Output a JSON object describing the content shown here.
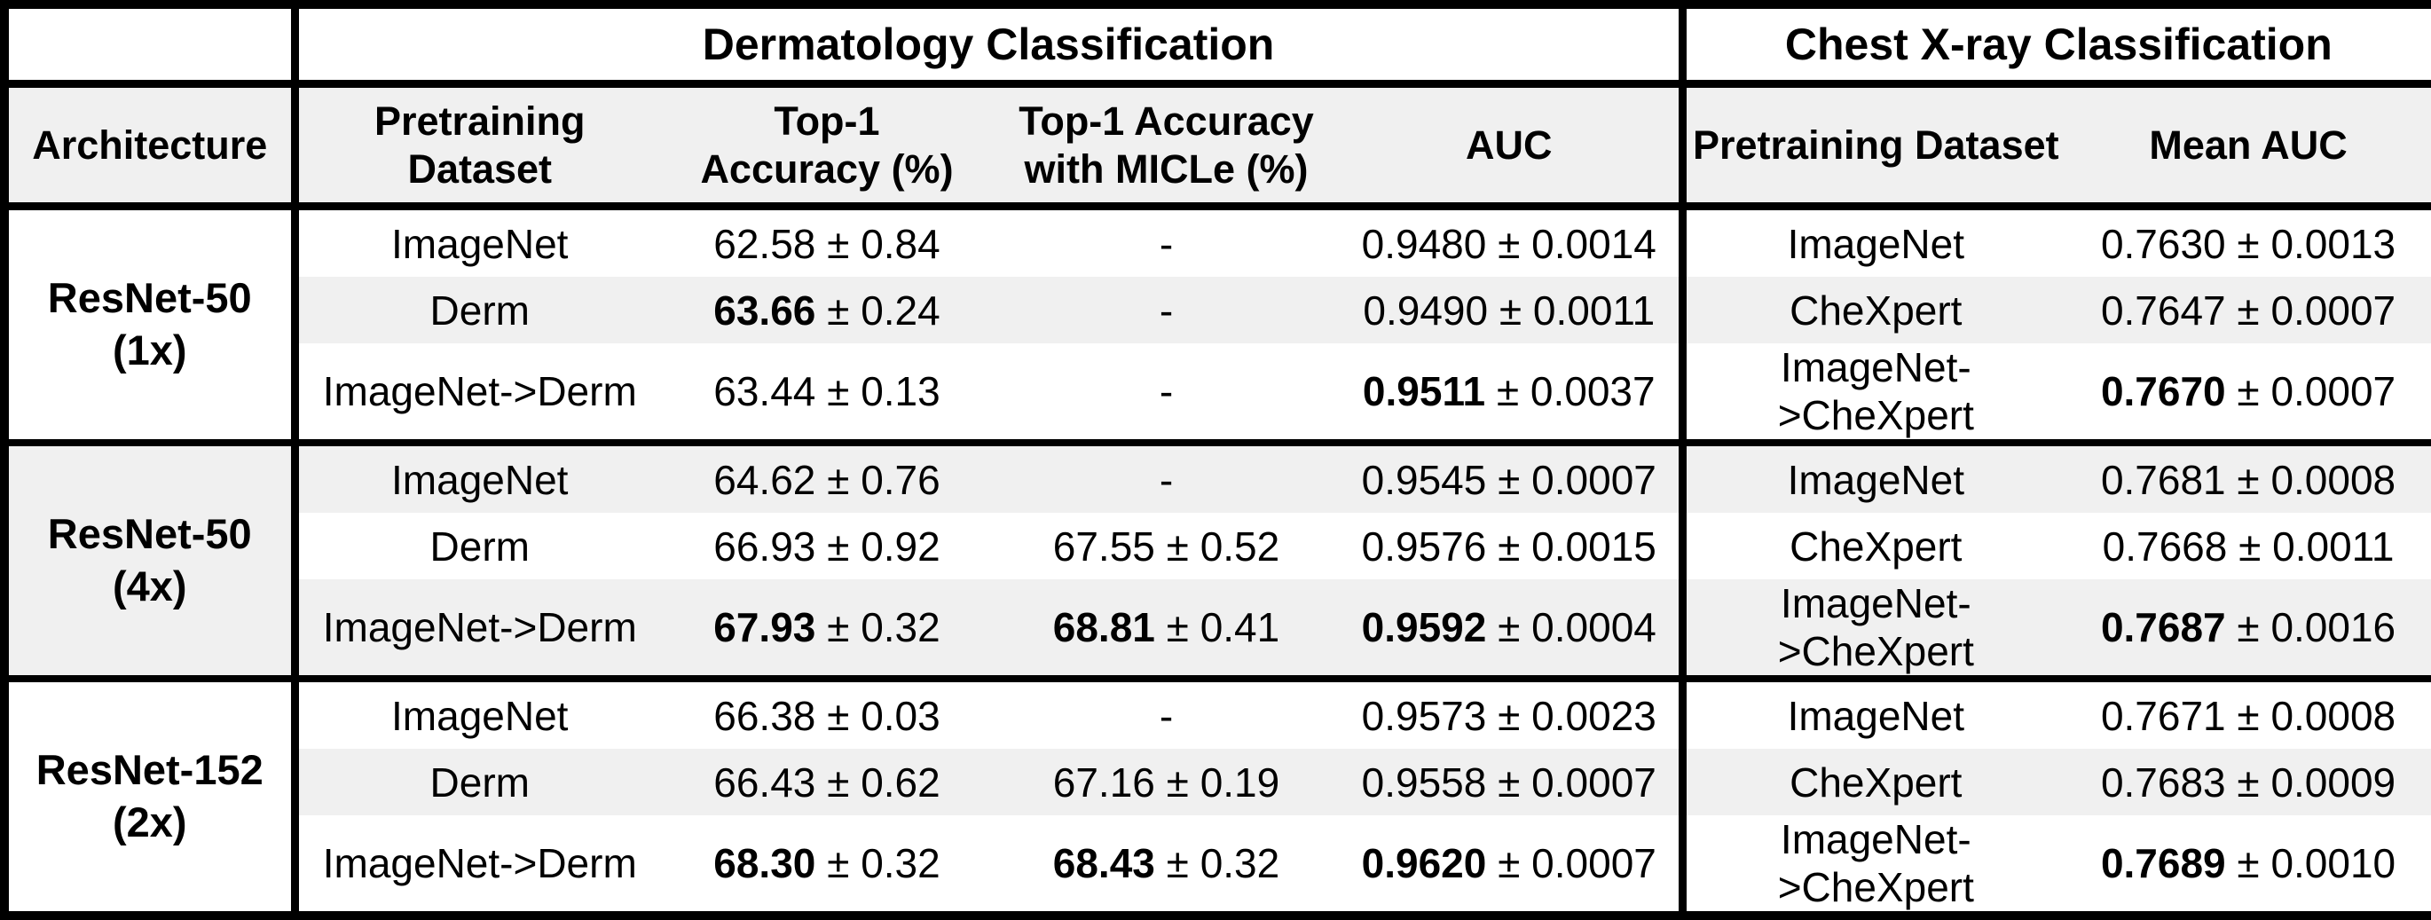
{
  "colors": {
    "background": "#ffffff",
    "border": "#000000",
    "stripe": "#f0f0f0",
    "text": "#000000"
  },
  "table": {
    "plus_minus": "±",
    "top_header": {
      "corner": "",
      "derm": "Dermatology Classification",
      "chest": "Chest X-ray Classification"
    },
    "col_header": {
      "architecture": "Architecture",
      "derm_pretrain": "Pretraining\nDataset",
      "top1": "Top-1\nAccuracy (%)",
      "top1_micle": "Top-1 Accuracy\nwith MICLe (%)",
      "auc": "AUC",
      "chest_pretrain": "Pretraining Dataset",
      "mean_auc": "Mean AUC"
    },
    "groups": [
      {
        "architecture": "ResNet-50\n(1x)",
        "rows": [
          {
            "derm_pretrain": "ImageNet",
            "top1": {
              "v": "62.58",
              "e": "0.84"
            },
            "micle": {
              "v": "-"
            },
            "auc": {
              "v": "0.9480",
              "e": "0.0014"
            },
            "chest_pretrain": "ImageNet",
            "mean_auc": {
              "v": "0.7630",
              "e": "0.0013"
            }
          },
          {
            "derm_pretrain": "Derm",
            "top1": {
              "v": "63.66",
              "e": "0.24",
              "bold": true
            },
            "micle": {
              "v": "-"
            },
            "auc": {
              "v": "0.9490",
              "e": "0.0011"
            },
            "chest_pretrain": "CheXpert",
            "mean_auc": {
              "v": "0.7647",
              "e": "0.0007"
            }
          },
          {
            "derm_pretrain": "ImageNet->Derm",
            "top1": {
              "v": "63.44",
              "e": "0.13"
            },
            "micle": {
              "v": "-"
            },
            "auc": {
              "v": "0.9511",
              "e": "0.0037",
              "bold": true
            },
            "chest_pretrain": "ImageNet->CheXpert",
            "mean_auc": {
              "v": "0.7670",
              "e": "0.0007",
              "bold": true
            }
          }
        ]
      },
      {
        "architecture": "ResNet-50\n(4x)",
        "rows": [
          {
            "derm_pretrain": "ImageNet",
            "top1": {
              "v": "64.62",
              "e": "0.76"
            },
            "micle": {
              "v": "-"
            },
            "auc": {
              "v": "0.9545",
              "e": "0.0007"
            },
            "chest_pretrain": "ImageNet",
            "mean_auc": {
              "v": "0.7681",
              "e": "0.0008"
            }
          },
          {
            "derm_pretrain": "Derm",
            "top1": {
              "v": "66.93",
              "e": "0.92"
            },
            "micle": {
              "v": "67.55",
              "e": "0.52"
            },
            "auc": {
              "v": "0.9576",
              "e": "0.0015"
            },
            "chest_pretrain": "CheXpert",
            "mean_auc": {
              "v": "0.7668",
              "e": "0.0011"
            }
          },
          {
            "derm_pretrain": "ImageNet->Derm",
            "top1": {
              "v": "67.93",
              "e": "0.32",
              "bold": true
            },
            "micle": {
              "v": "68.81",
              "e": "0.41",
              "bold": true
            },
            "auc": {
              "v": "0.9592",
              "e": "0.0004",
              "bold": true
            },
            "chest_pretrain": "ImageNet->CheXpert",
            "mean_auc": {
              "v": "0.7687",
              "e": "0.0016",
              "bold": true
            }
          }
        ]
      },
      {
        "architecture": "ResNet-152\n(2x)",
        "rows": [
          {
            "derm_pretrain": "ImageNet",
            "top1": {
              "v": "66.38",
              "e": "0.03"
            },
            "micle": {
              "v": "-"
            },
            "auc": {
              "v": "0.9573",
              "e": "0.0023"
            },
            "chest_pretrain": "ImageNet",
            "mean_auc": {
              "v": "0.7671",
              "e": "0.0008"
            }
          },
          {
            "derm_pretrain": "Derm",
            "top1": {
              "v": "66.43",
              "e": "0.62"
            },
            "micle": {
              "v": "67.16",
              "e": "0.19"
            },
            "auc": {
              "v": "0.9558",
              "e": "0.0007"
            },
            "chest_pretrain": "CheXpert",
            "mean_auc": {
              "v": "0.7683",
              "e": "0.0009"
            }
          },
          {
            "derm_pretrain": "ImageNet->Derm",
            "top1": {
              "v": "68.30",
              "e": "0.32",
              "bold": true
            },
            "micle": {
              "v": "68.43",
              "e": "0.32",
              "bold": true
            },
            "auc": {
              "v": "0.9620",
              "e": "0.0007",
              "bold": true
            },
            "chest_pretrain": "ImageNet->CheXpert",
            "mean_auc": {
              "v": "0.7689",
              "e": "0.0010",
              "bold": true
            }
          }
        ]
      }
    ]
  }
}
